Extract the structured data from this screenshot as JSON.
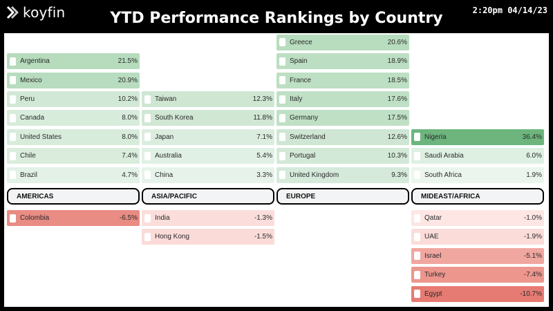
{
  "header": {
    "brand": "koyfin",
    "title": "YTD Performance Rankings by Country",
    "timestamp": "2:20pm 04/14/23"
  },
  "columns": [
    {
      "region": "AMERICAS",
      "positive": [
        {
          "name": "Argentina",
          "value": "21.5%",
          "color": "#b6dbbd"
        },
        {
          "name": "Mexico",
          "value": "20.9%",
          "color": "#b8dcbf"
        },
        {
          "name": "Peru",
          "value": "10.2%",
          "color": "#d2e8d6"
        },
        {
          "name": "Canada",
          "value": "8.0%",
          "color": "#d8ecdc"
        },
        {
          "name": "United States",
          "value": "8.0%",
          "color": "#d8ecdc"
        },
        {
          "name": "Chile",
          "value": "7.4%",
          "color": "#daeddd"
        },
        {
          "name": "Brazil",
          "value": "4.7%",
          "color": "#e3f1e6"
        }
      ],
      "negative": [
        {
          "name": "Colombia",
          "value": "-6.5%",
          "color": "#e88c84"
        }
      ]
    },
    {
      "region": "ASIA/PACIFIC",
      "positive": [
        {
          "name": "Taiwan",
          "value": "12.3%",
          "color": "#cfe6d3"
        },
        {
          "name": "South Korea",
          "value": "11.8%",
          "color": "#d0e7d4"
        },
        {
          "name": "Japan",
          "value": "7.1%",
          "color": "#dbeddf"
        },
        {
          "name": "Australia",
          "value": "5.4%",
          "color": "#e1f0e4"
        },
        {
          "name": "China",
          "value": "3.3%",
          "color": "#e7f3ea"
        }
      ],
      "negative": [
        {
          "name": "India",
          "value": "-1.3%",
          "color": "#fbdedb"
        },
        {
          "name": "Hong Kong",
          "value": "-1.5%",
          "color": "#fbdbd8"
        }
      ]
    },
    {
      "region": "EUROPE",
      "positive": [
        {
          "name": "Greece",
          "value": "20.6%",
          "color": "#b8dcbe"
        },
        {
          "name": "Spain",
          "value": "18.9%",
          "color": "#bcdec2"
        },
        {
          "name": "France",
          "value": "18.5%",
          "color": "#bddfc3"
        },
        {
          "name": "Italy",
          "value": "17.6%",
          "color": "#bfe0c5"
        },
        {
          "name": "Germany",
          "value": "17.5%",
          "color": "#bfe0c5"
        },
        {
          "name": "Switzerland",
          "value": "12.6%",
          "color": "#cee6d3"
        },
        {
          "name": "Portugal",
          "value": "10.3%",
          "color": "#d3e9d7"
        },
        {
          "name": "United Kingdom",
          "value": "9.3%",
          "color": "#d5eada"
        }
      ],
      "negative": []
    },
    {
      "region": "MIDEAST/AFRICA",
      "positive": [
        {
          "name": "Nigeria",
          "value": "36.4%",
          "color": "#6db57c"
        },
        {
          "name": "Saudi Arabia",
          "value": "6.0%",
          "color": "#def0e2"
        },
        {
          "name": "South Africa",
          "value": "1.9%",
          "color": "#ebf5ed"
        }
      ],
      "negative": [
        {
          "name": "Qatar",
          "value": "-1.0%",
          "color": "#fde6e3"
        },
        {
          "name": "UAE",
          "value": "-1.9%",
          "color": "#fbdcd9"
        },
        {
          "name": "Israel",
          "value": "-5.1%",
          "color": "#f0a7a0"
        },
        {
          "name": "Turkey",
          "value": "-7.4%",
          "color": "#ec968e"
        },
        {
          "name": "Egypt",
          "value": "-10.7%",
          "color": "#e67b73"
        }
      ]
    }
  ]
}
